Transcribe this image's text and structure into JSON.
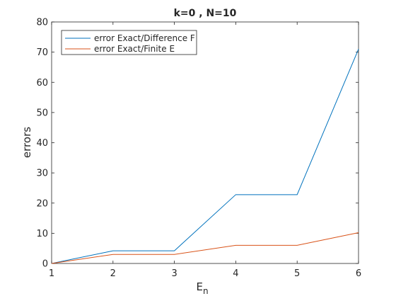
{
  "chart_data": {
    "type": "line",
    "title": "k=0 , N=10",
    "xlabel": "E",
    "xlabel_subscript": "n",
    "ylabel": "errors",
    "x": [
      1,
      2,
      3,
      4,
      5,
      6
    ],
    "xlim": [
      1,
      6
    ],
    "ylim": [
      0,
      80
    ],
    "xticks": [
      "1",
      "2",
      "3",
      "4",
      "5",
      "6"
    ],
    "yticks": [
      "0",
      "10",
      "20",
      "30",
      "40",
      "50",
      "60",
      "70",
      "80"
    ],
    "grid": false,
    "legend_position": "top-left",
    "series": [
      {
        "name": "error Exact/Difference F",
        "color": "#0072bd",
        "values": [
          0,
          4.2,
          4.2,
          22.8,
          22.8,
          71
        ]
      },
      {
        "name": "error Exact/Finite E",
        "color": "#d95319",
        "values": [
          0,
          3,
          3,
          6,
          6,
          10.2
        ]
      }
    ]
  }
}
